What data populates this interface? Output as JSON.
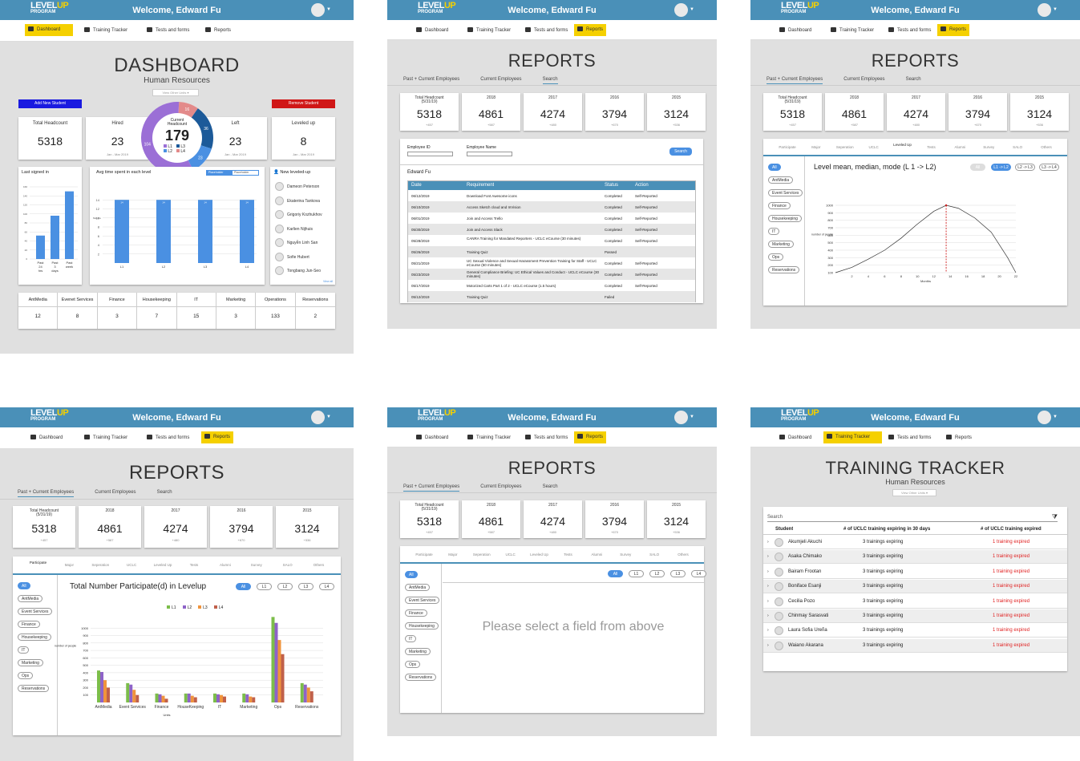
{
  "app": {
    "logo_line1": "LEVEL",
    "logo_line1b": "UP",
    "logo_line2": "PROGRAM",
    "welcome": "Welcome, Edward Fu"
  },
  "nav": {
    "dashboard": "Dashboard",
    "training_tracker": "Training Tracker",
    "tests_forms": "Tests and forms",
    "reports": "Reports"
  },
  "colors": {
    "header": "#4a90b8",
    "active_nav": "#f5d000",
    "accent": "#4a90e2",
    "expired": "#e02020"
  },
  "dashboard": {
    "title": "DASHBOARD",
    "subtitle": "Human Resources",
    "unit_select": "View Other Units",
    "add_button": "Add New Student",
    "remove_button": "Remove Student",
    "total_headcount_label": "Total Headcount",
    "total_headcount": "5318",
    "hired_label": "Hired",
    "hired": "23",
    "hired_range": "Jan - Mar 2019",
    "left_label": "Left",
    "left": "23",
    "left_range": "Jan - Mar 2019",
    "leveled_label": "Leveled up",
    "leveled": "8",
    "leveled_range": "Jan - Mar 2019",
    "current_headcount_label": "Current Headcount",
    "current_headcount": "179",
    "legend": [
      "L1",
      "L3",
      "L2",
      "L4"
    ],
    "last_signed_title": "Last signed in",
    "last_signed_bars": [
      "Past 24 hrs",
      "Past 3 days",
      "Past week"
    ],
    "avg_time_title": "Avg time spent in each level",
    "placeholder1": "Placeholder",
    "placeholder2": "Placeholder",
    "avg_bars": [
      "L1",
      "L2",
      "L3",
      "L4"
    ],
    "new_leveled_title": "New leveled-up",
    "new_leveled": [
      "Dameon Peterson",
      "Ekaterina Tankova",
      "Grigoriy Kozhukhov",
      "Karlien Nijhuis",
      "Nguyễn Linh San",
      "Sofie Hubert",
      "Tongbang Jun-Seo"
    ],
    "view_all": "View all",
    "units": [
      {
        "name": "AntMedia",
        "count": "12"
      },
      {
        "name": "Evenet Services",
        "count": "8"
      },
      {
        "name": "Finance",
        "count": "3"
      },
      {
        "name": "Housekeeping",
        "count": "7"
      },
      {
        "name": "IT",
        "count": "15"
      },
      {
        "name": "Marketing",
        "count": "3"
      },
      {
        "name": "Operations",
        "count": "133"
      },
      {
        "name": "Reservations",
        "count": "2"
      }
    ]
  },
  "reports": {
    "title": "REPORTS",
    "tabs": [
      "Past + Current Employees",
      "Current Employees",
      "Search"
    ],
    "summary": [
      {
        "label": "Total Headcount",
        "sub_label": "(5/31/19)",
        "value": "5318",
        "delta": "+457"
      },
      {
        "label": "2018",
        "value": "4861",
        "delta": "+587"
      },
      {
        "label": "2017",
        "value": "4274",
        "delta": "+480"
      },
      {
        "label": "2016",
        "value": "3794",
        "delta": "+670"
      },
      {
        "label": "2015",
        "value": "3124",
        "delta": "+536"
      }
    ],
    "category_tabs": [
      "Participate",
      "Major",
      "Seperation",
      "UCLC",
      "Leveled Up",
      "Tests",
      "Alumni",
      "Survey",
      "SALO",
      "Others"
    ],
    "filters": [
      "All",
      "AntMedia",
      "Event Services",
      "Finance",
      "Housekeeping",
      "IT",
      "Marketing",
      "Ops",
      "Reservations"
    ],
    "levels": [
      "All",
      "L1",
      "L2",
      "L3",
      "L4"
    ],
    "search": {
      "employee_id_label": "Employee ID",
      "employee_name_label": "Employee Name",
      "search_button": "Search",
      "person": "Edward Fu",
      "columns": [
        "Date",
        "Requirement",
        "Status",
        "Action"
      ],
      "rows": [
        [
          "06/12/2019",
          "Download Font Awesome icons",
          "Completed",
          "Self-Reported"
        ],
        [
          "06/10/2019",
          "Access Sketch cloud and InVision",
          "Completed",
          "Self-Reported"
        ],
        [
          "06/01/2019",
          "Join and Access Trello",
          "Completed",
          "Self-Reported"
        ],
        [
          "05/30/2019",
          "Join and Access Slack",
          "Completed",
          "Self-Reported"
        ],
        [
          "05/28/2019",
          "CANRA Training for Mandated Reporters - UCLC eCourse (30 minutes)",
          "Completed",
          "Self-Reported"
        ],
        [
          "05/26/2019",
          "Training Quiz",
          "Passed",
          ""
        ],
        [
          "05/21/2019",
          "UC Sexual Violence and Sexual Harassment Prevention Training for Staff - UCLC eCourse (50 minutes)",
          "Completed",
          "Self-Reported"
        ],
        [
          "05/23/2019",
          "General Compliance Briefing: UC Ethical Values and Conduct - UCLC eCourse (30 minutes)",
          "Completed",
          "Self-Reported"
        ],
        [
          "05/17/2019",
          "Motorized Carts Part 1 of 2 - UCLC eCourse (1.5 hours)",
          "Completed",
          "Self-Reported"
        ],
        [
          "05/12/2019",
          "Training Quiz",
          "Failed",
          ""
        ]
      ]
    },
    "level_chart": {
      "title": "Level mean, median, mode (L 1 -> L2)",
      "toggles": [
        "All",
        "L1 -> L2",
        "L2 -> L3",
        "L3 -> L4"
      ],
      "ylabel": "number of people",
      "xlabel": "Months"
    },
    "participate_chart": {
      "title": "Total Number Participate(d) in Levelup",
      "ylabel": "number of people",
      "xlabel": "Units"
    },
    "empty_message": "Please select a field from above"
  },
  "chart_data": [
    {
      "type": "pie",
      "title": "Current Headcount",
      "categories": [
        "L1",
        "L2",
        "L3",
        "L4"
      ],
      "values": [
        104,
        23,
        36,
        16
      ],
      "colors": [
        "#9b6fd6",
        "#4a90e2",
        "#1c5a99",
        "#e38a8a"
      ]
    },
    {
      "type": "bar",
      "title": "Last signed in",
      "categories": [
        "Past 24 hrs",
        "Past 3 days",
        "Past week"
      ],
      "values": [
        52,
        96,
        150
      ],
      "ylim": [
        0,
        160
      ],
      "yticks": [
        0,
        20,
        40,
        60,
        80,
        100,
        120,
        140,
        160
      ]
    },
    {
      "type": "bar",
      "title": "Avg time spent in each level",
      "ylabel": "Months",
      "categories": [
        "L1",
        "L2",
        "L3",
        "L4"
      ],
      "values": [
        14,
        14,
        14,
        14
      ],
      "value_labels": [
        "14",
        "14",
        "14",
        "14"
      ],
      "ylim": [
        0,
        16
      ],
      "yticks": [
        2,
        4,
        6,
        8,
        10,
        12,
        14
      ]
    },
    {
      "type": "line",
      "title": "Level mean, median, mode (L 1 -> L2)",
      "xlabel": "Months",
      "ylabel": "number of people",
      "x": [
        0,
        2,
        4,
        6,
        8,
        10,
        12,
        13.5,
        15,
        17,
        19,
        21,
        22
      ],
      "y": [
        100,
        170,
        280,
        400,
        560,
        750,
        920,
        1000,
        960,
        830,
        640,
        300,
        100
      ],
      "xlim": [
        0,
        22
      ],
      "ylim": [
        100,
        1000
      ],
      "xticks": [
        2,
        4,
        6,
        8,
        10,
        12,
        14,
        16,
        18,
        20,
        22
      ],
      "yticks": [
        100,
        200,
        300,
        400,
        500,
        600,
        700,
        800,
        900,
        1000
      ],
      "marker_x": 13.5
    },
    {
      "type": "bar",
      "title": "Total Number Participate(d) in Levelup",
      "xlabel": "Units",
      "ylabel": "number of people",
      "categories": [
        "AntMedia",
        "Event Services",
        "Finance",
        "HouseKeeping",
        "IT",
        "Marketing",
        "Ops",
        "Reservations"
      ],
      "series": [
        {
          "name": "L1",
          "values": [
            430,
            260,
            120,
            120,
            120,
            120,
            1150,
            260
          ]
        },
        {
          "name": "L2",
          "values": [
            410,
            240,
            110,
            120,
            110,
            110,
            1070,
            240
          ]
        },
        {
          "name": "L3",
          "values": [
            300,
            170,
            90,
            90,
            100,
            80,
            840,
            200
          ]
        },
        {
          "name": "L4",
          "values": [
            200,
            100,
            50,
            70,
            80,
            70,
            650,
            150
          ]
        }
      ],
      "colors": [
        "#7cbd4a",
        "#8e63c8",
        "#f0943c",
        "#c0604a"
      ],
      "ylim": [
        0,
        1100
      ],
      "yticks": [
        100,
        200,
        300,
        400,
        500,
        600,
        700,
        800,
        900,
        1000
      ]
    }
  ],
  "tracker": {
    "title": "TRAINING TRACKER",
    "subtitle": "Human Resources",
    "unit_select": "View Other Units",
    "search_placeholder": "Search",
    "columns": [
      "Student",
      "# of UCLC training expiring in 30 days",
      "# of UCLC training expired"
    ],
    "rows": [
      [
        "Akumjeli Akuchi",
        "3 trainings expiring",
        "1 training expired"
      ],
      [
        "Asaka Chimako",
        "3 trainings expiring",
        "1 training expired"
      ],
      [
        "Bairam Frootan",
        "3 trainings expiring",
        "1 training expired"
      ],
      [
        "Boniface Esanji",
        "3 trainings expiring",
        "1 training expired"
      ],
      [
        "Cecilia Pozo",
        "3 trainings expiring",
        "1 training expired"
      ],
      [
        "Chinmay Sarasvati",
        "3 trainings expiring",
        "1 training expired"
      ],
      [
        "Laura Sofia Ureña",
        "3 trainings expiring",
        "1 training expired"
      ],
      [
        "Waiano Akarana",
        "3 trainings expiring",
        "1 training expired"
      ]
    ]
  }
}
